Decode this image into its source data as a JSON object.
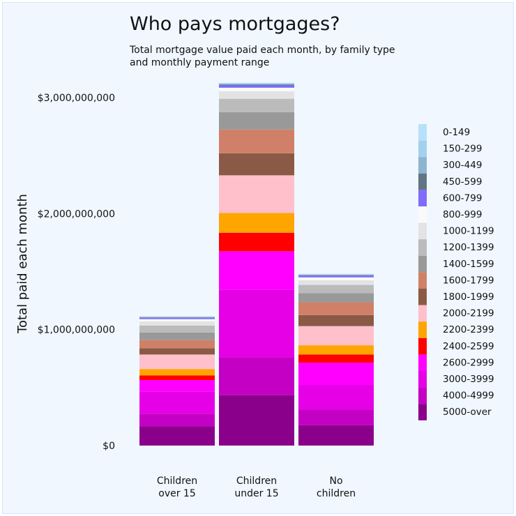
{
  "chart_data": {
    "type": "bar",
    "stacked": true,
    "title": "Who pays mortgages?",
    "subtitle": [
      "Total mortgage value paid each month, by family type",
      "and monthly payment range"
    ],
    "ylabel": "Total paid each month",
    "xlabel": "",
    "ylim": [
      0,
      3150000000
    ],
    "yticks": [
      0,
      1000000000,
      2000000000,
      3000000000
    ],
    "ytick_labels": [
      "$0",
      "$1,000,000,000",
      "$2,000,000,000",
      "$3,000,000,000"
    ],
    "grid": false,
    "legend_position": "right",
    "categories": [
      [
        "Children",
        "over 15"
      ],
      [
        "Children",
        "under 15"
      ],
      [
        "No",
        "children"
      ]
    ],
    "series": [
      {
        "name": "5000-over",
        "color": "#8b008b",
        "values": [
          165000000,
          435000000,
          175000000
        ]
      },
      {
        "name": "4000-4999",
        "color": "#c400c4",
        "values": [
          110000000,
          325000000,
          135000000
        ]
      },
      {
        "name": "3000-3999",
        "color": "#e600e6",
        "values": [
          190000000,
          585000000,
          210000000
        ]
      },
      {
        "name": "2600-2999",
        "color": "#ff00ff",
        "values": [
          100000000,
          330000000,
          195000000
        ]
      },
      {
        "name": "2400-2599",
        "color": "#ff0000",
        "values": [
          40000000,
          160000000,
          70000000
        ]
      },
      {
        "name": "2200-2399",
        "color": "#ffa500",
        "values": [
          55000000,
          170000000,
          80000000
        ]
      },
      {
        "name": "2000-2199",
        "color": "#ffc0cb",
        "values": [
          125000000,
          325000000,
          165000000
        ]
      },
      {
        "name": "1800-1999",
        "color": "#8b5a46",
        "values": [
          55000000,
          190000000,
          95000000
        ]
      },
      {
        "name": "1600-1799",
        "color": "#d08068",
        "values": [
          70000000,
          205000000,
          110000000
        ]
      },
      {
        "name": "1400-1599",
        "color": "#999999",
        "values": [
          65000000,
          150000000,
          80000000
        ]
      },
      {
        "name": "1200-1399",
        "color": "#bbbbbb",
        "values": [
          60000000,
          115000000,
          70000000
        ]
      },
      {
        "name": "1000-1199",
        "color": "#e3e3e3",
        "values": [
          35000000,
          65000000,
          40000000
        ]
      },
      {
        "name": "800-999",
        "color": "#fafafa",
        "values": [
          20000000,
          30000000,
          25000000
        ]
      },
      {
        "name": "600-799",
        "color": "#7f6cff",
        "values": [
          10000000,
          20000000,
          15000000
        ]
      },
      {
        "name": "450-599",
        "color": "#607585",
        "values": [
          4000000,
          6000000,
          4000000
        ]
      },
      {
        "name": "300-449",
        "color": "#8fb4d0",
        "values": [
          4000000,
          6000000,
          4000000
        ]
      },
      {
        "name": "150-299",
        "color": "#a4d0f0",
        "values": [
          4000000,
          6000000,
          4000000
        ]
      },
      {
        "name": "0-149",
        "color": "#b8e0fa",
        "values": [
          3000000,
          4000000,
          3000000
        ]
      }
    ],
    "legend_order": [
      "0-149",
      "150-299",
      "300-449",
      "450-599",
      "600-799",
      "800-999",
      "1000-1199",
      "1200-1399",
      "1400-1599",
      "1600-1799",
      "1800-1999",
      "2000-2199",
      "2200-2399",
      "2400-2599",
      "2600-2999",
      "3000-3999",
      "4000-4999",
      "5000-over"
    ]
  }
}
